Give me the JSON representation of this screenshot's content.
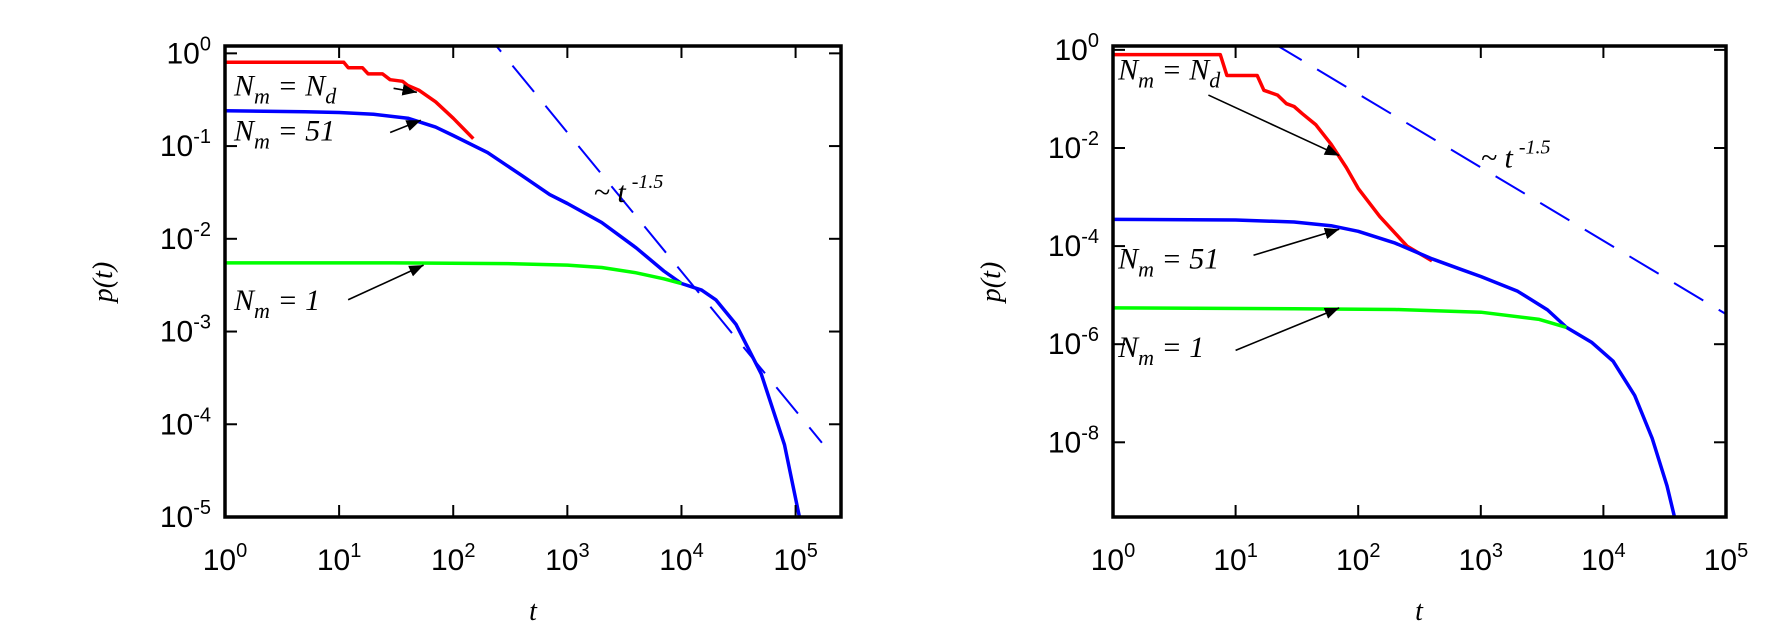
{
  "chart_data": [
    {
      "type": "line",
      "xlabel": "t",
      "ylabel": "p(t)",
      "x_scale": "log",
      "y_scale": "log",
      "xlim": [
        1,
        250000
      ],
      "ylim": [
        1e-05,
        1.2
      ],
      "x_ticks": [
        {
          "value": 1,
          "base": "10",
          "exp": "0"
        },
        {
          "value": 10,
          "base": "10",
          "exp": "1"
        },
        {
          "value": 100,
          "base": "10",
          "exp": "2"
        },
        {
          "value": 1000,
          "base": "10",
          "exp": "3"
        },
        {
          "value": 10000,
          "base": "10",
          "exp": "4"
        },
        {
          "value": 100000,
          "base": "10",
          "exp": "5"
        }
      ],
      "y_ticks": [
        {
          "value": 1,
          "base": "10",
          "exp": "0"
        },
        {
          "value": 0.1,
          "base": "10",
          "exp": "-1"
        },
        {
          "value": 0.01,
          "base": "10",
          "exp": "-2"
        },
        {
          "value": 0.001,
          "base": "10",
          "exp": "-3"
        },
        {
          "value": 0.0001,
          "base": "10",
          "exp": "-4"
        },
        {
          "value": 1e-05,
          "base": "10",
          "exp": "-5"
        }
      ],
      "series": [
        {
          "key": "nd",
          "color": "#ff0000",
          "dash": false,
          "points": [
            [
              1,
              0.8
            ],
            [
              11,
              0.8
            ],
            [
              12,
              0.7
            ],
            [
              16,
              0.7
            ],
            [
              18,
              0.6
            ],
            [
              24,
              0.6
            ],
            [
              28,
              0.52
            ],
            [
              36,
              0.5
            ],
            [
              40,
              0.45
            ],
            [
              50,
              0.4
            ],
            [
              70,
              0.3
            ],
            [
              100,
              0.2
            ],
            [
              150,
              0.12
            ]
          ]
        },
        {
          "key": "n51",
          "color": "#0000ff",
          "dash": false,
          "points": [
            [
              1,
              0.24
            ],
            [
              5,
              0.235
            ],
            [
              10,
              0.23
            ],
            [
              20,
              0.22
            ],
            [
              40,
              0.2
            ],
            [
              70,
              0.16
            ],
            [
              100,
              0.13
            ],
            [
              200,
              0.085
            ],
            [
              400,
              0.048
            ],
            [
              700,
              0.03
            ],
            [
              1000,
              0.024
            ],
            [
              2000,
              0.015
            ],
            [
              4000,
              0.008
            ],
            [
              7000,
              0.0045
            ],
            [
              10000,
              0.0033
            ],
            [
              15000,
              0.0028
            ],
            [
              20000,
              0.0022
            ],
            [
              30000,
              0.0012
            ],
            [
              50000,
              0.00035
            ],
            [
              80000,
              6e-05
            ],
            [
              110000,
              9e-06
            ]
          ]
        },
        {
          "key": "n1",
          "color": "#00ff00",
          "dash": false,
          "points": [
            [
              1,
              0.0055
            ],
            [
              30,
              0.0055
            ],
            [
              300,
              0.0054
            ],
            [
              1000,
              0.0052
            ],
            [
              2000,
              0.0049
            ],
            [
              4000,
              0.0043
            ],
            [
              7000,
              0.0037
            ],
            [
              10000,
              0.0033
            ]
          ]
        },
        {
          "key": "guide",
          "color": "#0000ff",
          "dash": true,
          "points": [
            [
              170,
              2.0
            ],
            [
              170000,
              6.32e-05
            ]
          ]
        }
      ],
      "annotations": [
        {
          "key": "nd",
          "text_pos": [
            1.2,
            0.35
          ],
          "arrow_from": [
            30,
            0.42
          ],
          "arrow_to": [
            48,
            0.38
          ]
        },
        {
          "key": "n51",
          "text_pos": [
            1.2,
            0.115
          ],
          "arrow_from": [
            28,
            0.14
          ],
          "arrow_to": [
            52,
            0.19
          ]
        },
        {
          "key": "n1",
          "text_pos": [
            1.2,
            0.0017
          ],
          "arrow_from": [
            12,
            0.0022
          ],
          "arrow_to": [
            55,
            0.0052
          ]
        },
        {
          "key": "slope",
          "text_pos": [
            1700,
            0.025
          ]
        }
      ]
    },
    {
      "type": "line",
      "xlabel": "t",
      "ylabel": "p(t)",
      "x_scale": "log",
      "y_scale": "log",
      "xlim": [
        1,
        100000
      ],
      "ylim": [
        3e-10,
        1.2
      ],
      "x_ticks": [
        {
          "value": 1,
          "base": "10",
          "exp": "0"
        },
        {
          "value": 10,
          "base": "10",
          "exp": "1"
        },
        {
          "value": 100,
          "base": "10",
          "exp": "2"
        },
        {
          "value": 1000,
          "base": "10",
          "exp": "3"
        },
        {
          "value": 10000,
          "base": "10",
          "exp": "4"
        },
        {
          "value": 100000,
          "base": "10",
          "exp": "5"
        }
      ],
      "y_ticks": [
        {
          "value": 1,
          "base": "10",
          "exp": "0"
        },
        {
          "value": 0.01,
          "base": "10",
          "exp": "-2"
        },
        {
          "value": 0.0001,
          "base": "10",
          "exp": "-4"
        },
        {
          "value": 1e-06,
          "base": "10",
          "exp": "-6"
        },
        {
          "value": 1e-08,
          "base": "10",
          "exp": "-8"
        }
      ],
      "series": [
        {
          "key": "nd",
          "color": "#ff0000",
          "dash": false,
          "points": [
            [
              1,
              0.8
            ],
            [
              7.5,
              0.8
            ],
            [
              8.5,
              0.3
            ],
            [
              15,
              0.3
            ],
            [
              17,
              0.15
            ],
            [
              22,
              0.12
            ],
            [
              26,
              0.08
            ],
            [
              30,
              0.07
            ],
            [
              35,
              0.05
            ],
            [
              45,
              0.03
            ],
            [
              60,
              0.012
            ],
            [
              80,
              0.004
            ],
            [
              100,
              0.0015
            ],
            [
              150,
              0.0004
            ],
            [
              250,
              0.0001
            ],
            [
              400,
              5e-05
            ]
          ]
        },
        {
          "key": "n51",
          "color": "#0000ff",
          "dash": false,
          "points": [
            [
              1,
              0.00035
            ],
            [
              10,
              0.00034
            ],
            [
              30,
              0.00031
            ],
            [
              60,
              0.00026
            ],
            [
              100,
              0.0002
            ],
            [
              200,
              0.000115
            ],
            [
              400,
              5.5e-05
            ],
            [
              700,
              3.3e-05
            ],
            [
              1000,
              2.4e-05
            ],
            [
              2000,
              1.2e-05
            ],
            [
              3500,
              5e-06
            ],
            [
              5000,
              2.2e-06
            ],
            [
              8000,
              1.1e-06
            ],
            [
              12000,
              4.5e-07
            ],
            [
              18000,
              9e-08
            ],
            [
              25000,
              1.2e-08
            ],
            [
              33000,
              1.3e-09
            ],
            [
              38000,
              3e-10
            ]
          ]
        },
        {
          "key": "n1",
          "color": "#00ff00",
          "dash": false,
          "points": [
            [
              1,
              5.5e-06
            ],
            [
              30,
              5.3e-06
            ],
            [
              200,
              5.1e-06
            ],
            [
              1000,
              4.5e-06
            ],
            [
              3000,
              3.2e-06
            ],
            [
              5000,
              2.2e-06
            ]
          ]
        },
        {
          "key": "guide",
          "color": "#0000ff",
          "dash": true,
          "points": [
            [
              20,
              1.4
            ],
            [
              100000,
              4.1e-06
            ]
          ]
        }
      ],
      "annotations": [
        {
          "key": "nd",
          "text_pos": [
            1.1,
            0.25
          ],
          "arrow_from": [
            6,
            0.12
          ],
          "arrow_to": [
            70,
            0.007
          ]
        },
        {
          "key": "n51",
          "text_pos": [
            1.1,
            3.5e-05
          ],
          "arrow_from": [
            14,
            6.5e-05
          ],
          "arrow_to": [
            70,
            0.00022
          ]
        },
        {
          "key": "n1",
          "text_pos": [
            1.1,
            5.5e-07
          ],
          "arrow_from": [
            10,
            7.5e-07
          ],
          "arrow_to": [
            70,
            5.5e-06
          ]
        },
        {
          "key": "slope",
          "text_pos": [
            1000,
            0.004
          ]
        }
      ]
    }
  ],
  "labels": {
    "nd": {
      "lhs": "N",
      "lhs_sub": "m",
      "eq": " = ",
      "rhs": "N",
      "rhs_sub": "d"
    },
    "n51": {
      "lhs": "N",
      "lhs_sub": "m",
      "eq": " = 51",
      "rhs": "",
      "rhs_sub": ""
    },
    "n1": {
      "lhs": "N",
      "lhs_sub": "m",
      "eq": " = 1",
      "rhs": "",
      "rhs_sub": ""
    },
    "slope": {
      "prefix": "~ t",
      "exp": "-1.5"
    }
  }
}
